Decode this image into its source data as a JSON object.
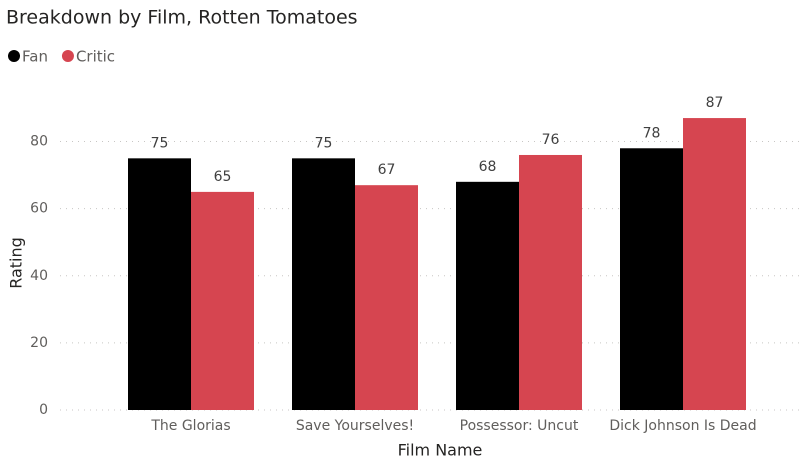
{
  "chart_data": {
    "type": "bar",
    "title": "Breakdown by Film, Rotten Tomatoes",
    "x_label": "Film Name",
    "y_label": "Rating",
    "categories": [
      "The Glorias",
      "Save Yourselves!",
      "Possessor: Uncut",
      "Dick Johnson Is Dead"
    ],
    "series": [
      {
        "name": "Fan",
        "color": "#000000",
        "values": [
          75,
          75,
          68,
          78
        ]
      },
      {
        "name": "Critic",
        "color": "#d64550",
        "values": [
          65,
          67,
          76,
          87
        ]
      }
    ],
    "ylim": [
      0,
      90
    ],
    "yticks": [
      0,
      20,
      40,
      60,
      80
    ],
    "grid": true,
    "legend": "top-left",
    "data_labels": true
  }
}
